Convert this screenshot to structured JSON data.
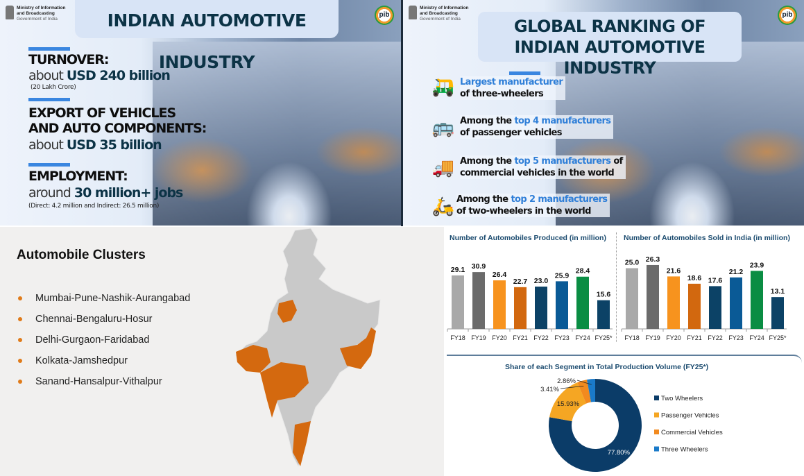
{
  "header": {
    "ministry_line1": "Ministry of Information",
    "ministry_line2": "and Broadcasting",
    "ministry_line3": "Government of India",
    "pib_logo": "pib"
  },
  "panel1": {
    "title": "INDIAN AUTOMOTIVE INDUSTRY",
    "items": [
      {
        "heading": "TURNOVER:",
        "prefix": "about",
        "value": "USD 240 billion",
        "note": "(20 Lakh Crore)"
      },
      {
        "heading": "EXPORT OF VEHICLES",
        "heading2": "AND AUTO COMPONENTS:",
        "prefix": "about",
        "value": "USD 35 billion"
      },
      {
        "heading": "EMPLOYMENT:",
        "prefix": "around",
        "value": "30 million+ jobs",
        "note": "(Direct: 4.2 million and Indirect: 26.5 million)"
      }
    ]
  },
  "panel2": {
    "title_line1": "GLOBAL RANKING OF",
    "title_line2": "INDIAN AUTOMOTIVE INDUSTRY",
    "items": [
      {
        "icon": "auto-rickshaw-icon",
        "pre": "",
        "hl": "Largest manufacturer",
        "post": "",
        "line2": "of three-wheelers"
      },
      {
        "icon": "bus-icon",
        "pre": "Among the ",
        "hl": "top 4 manufacturers",
        "post": "",
        "line2": "of passenger vehicles"
      },
      {
        "icon": "truck-icon",
        "pre": "Among the ",
        "hl": "top 5 manufacturers",
        "post": " of",
        "line2": "commercial vehicles in the world"
      },
      {
        "icon": "scooter-icon",
        "pre": "Among the ",
        "hl": "top 2 manufacturers",
        "post": "",
        "line2": "of two-wheelers in the world"
      }
    ]
  },
  "clusters": {
    "title": "Automobile Clusters",
    "items": [
      "Mumbai-Pune-Nashik-Aurangabad",
      "Chennai-Bengaluru-Hosur",
      "Delhi-Gurgaon-Faridabad",
      "Kolkata-Jamshedpur",
      "Sanand-Hansalpur-Vithalpur"
    ],
    "highlight_color": "#d4690f"
  },
  "chart_data": [
    {
      "type": "bar",
      "title": "Number of Automobiles Produced (in million)",
      "categories": [
        "FY18",
        "FY19",
        "FY20",
        "FY21",
        "FY22",
        "FY23",
        "FY24",
        "FY25*"
      ],
      "values": [
        29.1,
        30.9,
        26.4,
        22.7,
        23.0,
        25.9,
        28.4,
        15.6
      ],
      "colors": [
        "#a9a9a9",
        "#6b6b6b",
        "#f7931e",
        "#d2680f",
        "#0c4266",
        "#0a5a96",
        "#0a8d43",
        "#0c4266"
      ]
    },
    {
      "type": "bar",
      "title": "Number of Automobiles Sold in India (in million)",
      "categories": [
        "FY18",
        "FY19",
        "FY20",
        "FY21",
        "FY22",
        "FY23",
        "FY24",
        "FY25*"
      ],
      "values": [
        25.0,
        26.3,
        21.6,
        18.6,
        17.6,
        21.2,
        23.9,
        13.1
      ],
      "colors": [
        "#a9a9a9",
        "#6b6b6b",
        "#f7931e",
        "#d2680f",
        "#0c4266",
        "#0a5a96",
        "#0a8d43",
        "#0c4266"
      ]
    },
    {
      "type": "pie",
      "title": "Share of each Segment in Total Production Volume (FY25*)",
      "legend": "right",
      "series": [
        {
          "name": "Two Wheelers",
          "value": 77.8,
          "label": "77.80%",
          "color": "#0b3c68"
        },
        {
          "name": "Passenger Vehicles",
          "value": 15.93,
          "label": "15.93%",
          "color": "#f5a623"
        },
        {
          "name": "Commercial Vehicles",
          "value": 3.41,
          "label": "3.41%",
          "color": "#f28a1f"
        },
        {
          "name": "Three Wheelers",
          "value": 2.86,
          "label": "2.86%",
          "color": "#1a7ac9"
        }
      ]
    }
  ]
}
